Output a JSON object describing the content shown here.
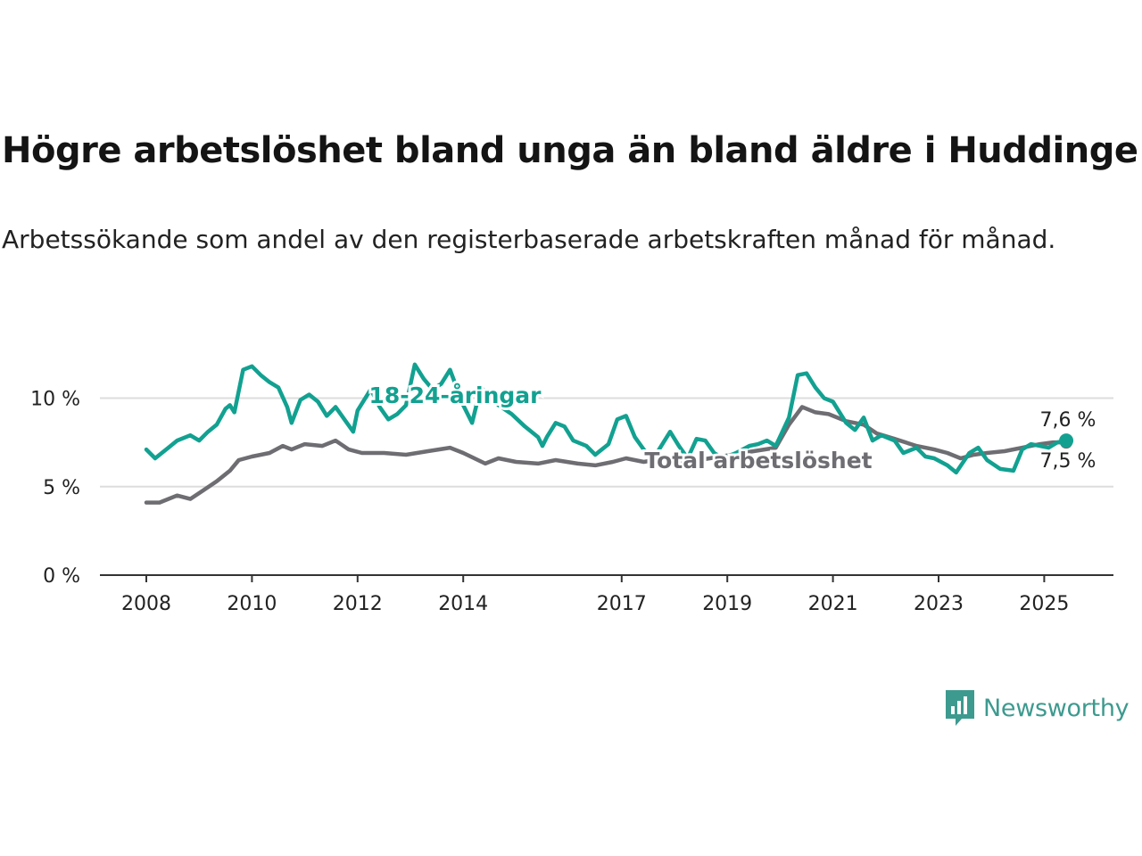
{
  "title": "Högre arbetslöshet bland unga än bland äldre i Huddinge",
  "subtitle": "Arbetssökande som andel av den registerbaserade arbetskraften månad för månad.",
  "brand": {
    "name": "Newsworthy",
    "color": "#3d9a8f",
    "icon": "bar-chart-icon"
  },
  "chart_data": {
    "type": "line",
    "x_unit": "month",
    "xlim": [
      "2007-12",
      "2026-12"
    ],
    "ylim": [
      0,
      12
    ],
    "yticks": [
      0,
      5,
      10
    ],
    "ytick_labels": [
      "0 %",
      "5 %",
      "10 %"
    ],
    "xticks": [
      "2008",
      "2010",
      "2012",
      "2014",
      "2017",
      "2019",
      "2021",
      "2023",
      "2025"
    ],
    "grid": true,
    "series": [
      {
        "name": "18-24-åringar",
        "color": "#12a191",
        "end_label": "7,6 %",
        "points": [
          [
            "2008-01",
            7.1
          ],
          [
            "2008-03",
            6.6
          ],
          [
            "2008-06",
            7.2
          ],
          [
            "2008-08",
            7.6
          ],
          [
            "2008-11",
            7.9
          ],
          [
            "2009-01",
            7.6
          ],
          [
            "2009-03",
            8.1
          ],
          [
            "2009-05",
            8.5
          ],
          [
            "2009-07",
            9.4
          ],
          [
            "2009-08",
            9.6
          ],
          [
            "2009-09",
            9.2
          ],
          [
            "2009-11",
            11.6
          ],
          [
            "2010-01",
            11.8
          ],
          [
            "2010-03",
            11.3
          ],
          [
            "2010-05",
            10.9
          ],
          [
            "2010-07",
            10.6
          ],
          [
            "2010-09",
            9.5
          ],
          [
            "2010-10",
            8.6
          ],
          [
            "2010-12",
            9.9
          ],
          [
            "2011-02",
            10.2
          ],
          [
            "2011-04",
            9.8
          ],
          [
            "2011-06",
            9.0
          ],
          [
            "2011-08",
            9.5
          ],
          [
            "2011-10",
            8.8
          ],
          [
            "2011-12",
            8.1
          ],
          [
            "2012-01",
            9.3
          ],
          [
            "2012-04",
            10.5
          ],
          [
            "2012-06",
            9.5
          ],
          [
            "2012-08",
            8.8
          ],
          [
            "2012-10",
            9.1
          ],
          [
            "2012-12",
            9.6
          ],
          [
            "2013-02",
            11.9
          ],
          [
            "2013-04",
            11.1
          ],
          [
            "2013-06",
            10.5
          ],
          [
            "2013-08",
            10.8
          ],
          [
            "2013-10",
            11.6
          ],
          [
            "2014-01",
            9.6
          ],
          [
            "2014-03",
            8.6
          ],
          [
            "2014-05",
            10.6
          ],
          [
            "2014-07",
            10.2
          ],
          [
            "2014-09",
            9.6
          ],
          [
            "2014-12",
            9.1
          ],
          [
            "2015-03",
            8.4
          ],
          [
            "2015-06",
            7.8
          ],
          [
            "2015-07",
            7.3
          ],
          [
            "2015-08",
            7.8
          ],
          [
            "2015-10",
            8.6
          ],
          [
            "2015-12",
            8.4
          ],
          [
            "2016-02",
            7.6
          ],
          [
            "2016-05",
            7.3
          ],
          [
            "2016-07",
            6.8
          ],
          [
            "2016-08",
            7.0
          ],
          [
            "2016-10",
            7.4
          ],
          [
            "2016-12",
            8.8
          ],
          [
            "2017-02",
            9.0
          ],
          [
            "2017-04",
            7.8
          ],
          [
            "2017-06",
            7.1
          ],
          [
            "2017-08",
            6.5
          ],
          [
            "2017-10",
            7.3
          ],
          [
            "2017-12",
            8.1
          ],
          [
            "2018-02",
            7.3
          ],
          [
            "2018-04",
            6.6
          ],
          [
            "2018-06",
            7.7
          ],
          [
            "2018-08",
            7.6
          ],
          [
            "2018-10",
            6.9
          ],
          [
            "2018-12",
            6.6
          ],
          [
            "2019-03",
            6.9
          ],
          [
            "2019-06",
            7.3
          ],
          [
            "2019-08",
            7.4
          ],
          [
            "2019-10",
            7.6
          ],
          [
            "2019-12",
            7.3
          ],
          [
            "2020-03",
            8.9
          ],
          [
            "2020-05",
            11.3
          ],
          [
            "2020-07",
            11.4
          ],
          [
            "2020-09",
            10.6
          ],
          [
            "2020-11",
            10.0
          ],
          [
            "2021-01",
            9.8
          ],
          [
            "2021-04",
            8.6
          ],
          [
            "2021-06",
            8.2
          ],
          [
            "2021-08",
            8.9
          ],
          [
            "2021-10",
            7.6
          ],
          [
            "2021-12",
            7.9
          ],
          [
            "2022-03",
            7.6
          ],
          [
            "2022-05",
            6.9
          ],
          [
            "2022-08",
            7.2
          ],
          [
            "2022-10",
            6.7
          ],
          [
            "2022-12",
            6.6
          ],
          [
            "2023-03",
            6.2
          ],
          [
            "2023-05",
            5.8
          ],
          [
            "2023-08",
            6.9
          ],
          [
            "2023-10",
            7.2
          ],
          [
            "2023-12",
            6.5
          ],
          [
            "2024-03",
            6.0
          ],
          [
            "2024-06",
            5.9
          ],
          [
            "2024-08",
            7.1
          ],
          [
            "2024-10",
            7.4
          ],
          [
            "2024-12",
            7.3
          ],
          [
            "2025-02",
            7.2
          ],
          [
            "2025-04",
            7.5
          ],
          [
            "2025-06",
            7.6
          ]
        ]
      },
      {
        "name": "Total arbetslöshet",
        "color": "#6e6d72",
        "end_label": "7,5 %",
        "points": [
          [
            "2008-01",
            4.1
          ],
          [
            "2008-04",
            4.1
          ],
          [
            "2008-08",
            4.5
          ],
          [
            "2008-11",
            4.3
          ],
          [
            "2009-02",
            4.8
          ],
          [
            "2009-05",
            5.3
          ],
          [
            "2009-08",
            5.9
          ],
          [
            "2009-10",
            6.5
          ],
          [
            "2010-01",
            6.7
          ],
          [
            "2010-05",
            6.9
          ],
          [
            "2010-08",
            7.3
          ],
          [
            "2010-10",
            7.1
          ],
          [
            "2011-01",
            7.4
          ],
          [
            "2011-05",
            7.3
          ],
          [
            "2011-08",
            7.6
          ],
          [
            "2011-11",
            7.1
          ],
          [
            "2012-02",
            6.9
          ],
          [
            "2012-07",
            6.9
          ],
          [
            "2012-12",
            6.8
          ],
          [
            "2013-05",
            7.0
          ],
          [
            "2013-10",
            7.2
          ],
          [
            "2014-01",
            6.9
          ],
          [
            "2014-06",
            6.3
          ],
          [
            "2014-09",
            6.6
          ],
          [
            "2015-01",
            6.4
          ],
          [
            "2015-06",
            6.3
          ],
          [
            "2015-10",
            6.5
          ],
          [
            "2016-03",
            6.3
          ],
          [
            "2016-07",
            6.2
          ],
          [
            "2016-11",
            6.4
          ],
          [
            "2017-02",
            6.6
          ],
          [
            "2017-06",
            6.4
          ],
          [
            "2017-11",
            6.6
          ],
          [
            "2018-04",
            6.4
          ],
          [
            "2018-09",
            6.6
          ],
          [
            "2019-02",
            6.8
          ],
          [
            "2019-07",
            7.0
          ],
          [
            "2019-12",
            7.2
          ],
          [
            "2020-03",
            8.5
          ],
          [
            "2020-06",
            9.5
          ],
          [
            "2020-09",
            9.2
          ],
          [
            "2020-12",
            9.1
          ],
          [
            "2021-04",
            8.7
          ],
          [
            "2021-08",
            8.5
          ],
          [
            "2021-11",
            8.0
          ],
          [
            "2022-03",
            7.7
          ],
          [
            "2022-08",
            7.3
          ],
          [
            "2022-12",
            7.1
          ],
          [
            "2023-03",
            6.9
          ],
          [
            "2023-06",
            6.6
          ],
          [
            "2023-09",
            6.8
          ],
          [
            "2023-12",
            6.9
          ],
          [
            "2024-04",
            7.0
          ],
          [
            "2024-08",
            7.2
          ],
          [
            "2024-12",
            7.4
          ],
          [
            "2025-03",
            7.5
          ],
          [
            "2025-06",
            7.5
          ]
        ]
      }
    ]
  }
}
